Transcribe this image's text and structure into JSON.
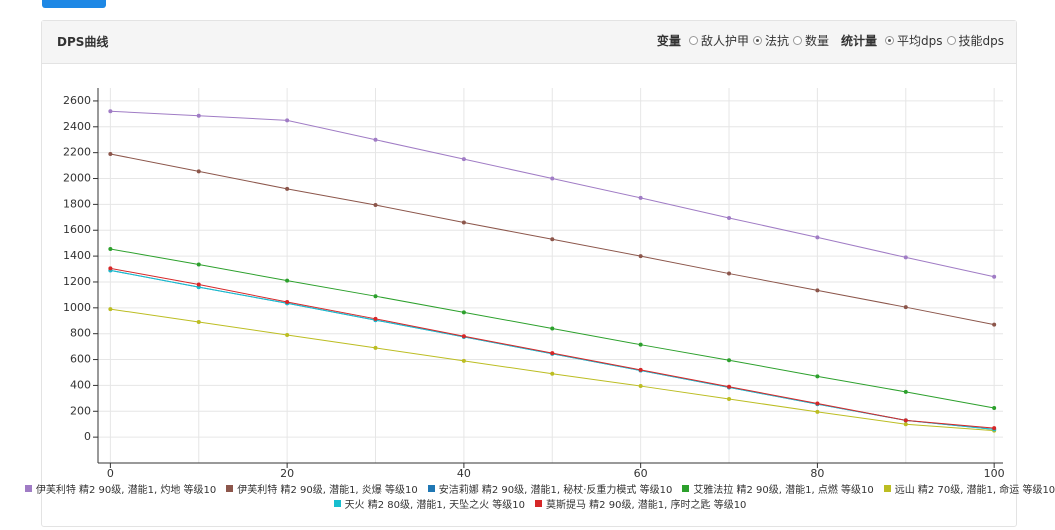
{
  "panel": {
    "title": "DPS曲线",
    "variable_label": "变量",
    "variable_options": [
      "敌人护甲",
      "法抗",
      "数量"
    ],
    "variable_selected": 1,
    "stat_label": "统计量",
    "stat_options": [
      "平均dps",
      "技能dps"
    ],
    "stat_selected": 0
  },
  "chart_data": {
    "type": "line",
    "x": [
      0,
      10,
      20,
      30,
      40,
      50,
      60,
      70,
      80,
      90,
      100
    ],
    "xlim": [
      -1.4,
      101
    ],
    "xticks": [
      0,
      20,
      40,
      60,
      80,
      100
    ],
    "ylim": [
      -200,
      2700
    ],
    "yticks": [
      0,
      200,
      400,
      600,
      800,
      1000,
      1200,
      1400,
      1600,
      1800,
      2000,
      2200,
      2400,
      2600
    ],
    "grid": true,
    "legend": "bottom",
    "series": [
      {
        "name": "伊芙利特 精2 90级, 潜能1, 灼地 等级10",
        "color": "#a07cc5",
        "values": [
          2520,
          2485,
          2450,
          2300,
          2150,
          2000,
          1850,
          1695,
          1545,
          1390,
          1240
        ]
      },
      {
        "name": "伊芙利特 精2 90级, 潜能1, 炎爆 等级10",
        "color": "#8c564b",
        "values": [
          2190,
          2055,
          1920,
          1795,
          1660,
          1530,
          1400,
          1265,
          1135,
          1005,
          870
        ]
      },
      {
        "name": "安洁莉娜 精2 90级, 潜能1, 秘杖·反重力模式 等级10",
        "color": "#1f77b4",
        "values": [
          1290,
          1160,
          1035,
          905,
          775,
          645,
          515,
          385,
          255,
          130,
          60
        ]
      },
      {
        "name": "艾雅法拉 精2 90级, 潜能1, 点燃 等级10",
        "color": "#2ca02c",
        "values": [
          1455,
          1335,
          1210,
          1090,
          965,
          840,
          715,
          595,
          470,
          350,
          225
        ]
      },
      {
        "name": "远山 精2 70级, 潜能1, 命运 等级10",
        "color": "#bcbd22",
        "values": [
          990,
          890,
          790,
          690,
          590,
          490,
          395,
          295,
          195,
          100,
          50
        ]
      },
      {
        "name": "天火 精2 80级, 潜能1, 天坠之火 等级10",
        "color": "#17becf",
        "values": [
          1290,
          1160,
          1035,
          905,
          775,
          645,
          515,
          385,
          255,
          130,
          60
        ]
      },
      {
        "name": "莫斯提马 精2 90级, 潜能1, 序时之匙 等级10",
        "color": "#d62728",
        "values": [
          1305,
          1180,
          1045,
          915,
          780,
          650,
          520,
          390,
          260,
          130,
          70
        ]
      }
    ]
  }
}
